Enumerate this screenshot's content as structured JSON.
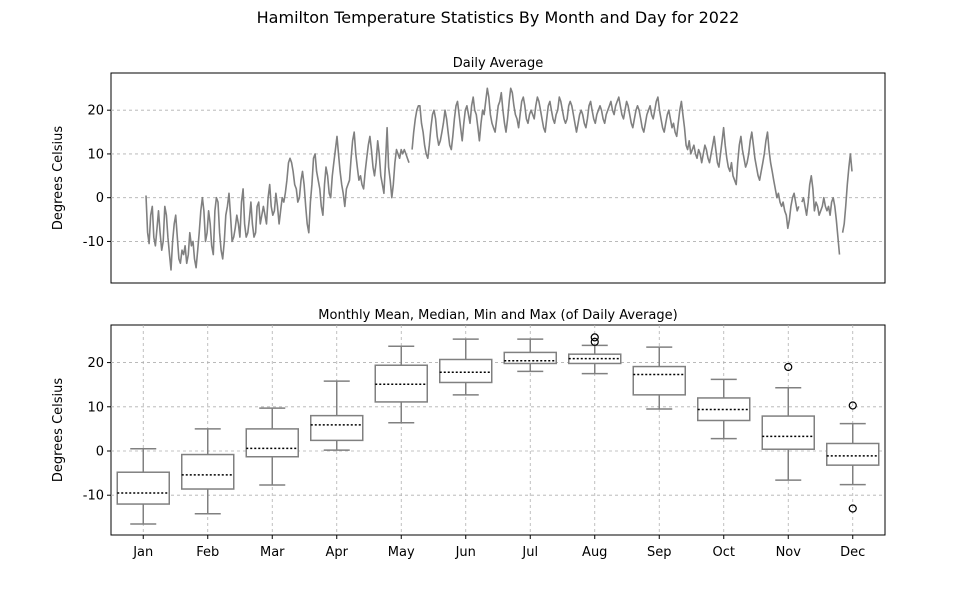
{
  "figure": {
    "title": "Hamilton Temperature Statistics By Month and Day for 2022"
  },
  "chart_data": [
    {
      "type": "line",
      "title": "Daily Average",
      "xlabel": "",
      "ylabel": "Degrees Celsius",
      "x_range": [
        1,
        365
      ],
      "ylim": [
        -19.5,
        28.5
      ],
      "yticks": [
        -10,
        0,
        10,
        20
      ],
      "grid": "y-dashed",
      "color": "#808080",
      "series": [
        {
          "values": [
            0.5,
            -8,
            -10.5,
            -4,
            -2,
            -9,
            -11,
            -7,
            -3,
            -8,
            -12,
            -10,
            -2,
            -4,
            -9,
            -13,
            -16.5,
            -10,
            -6,
            -4,
            -9,
            -14,
            -15,
            -12,
            -13,
            -11,
            -15,
            -13,
            -8,
            -11,
            -10,
            -14,
            -16,
            -12,
            -8,
            -3,
            0,
            -3,
            -10,
            -8,
            -3,
            -6,
            -11,
            -13,
            -3,
            0,
            -1,
            -8,
            -12,
            -14,
            -10,
            -4,
            -2,
            1,
            -4,
            -10,
            -9,
            -7,
            -4,
            -6,
            -9,
            -1,
            2,
            -6,
            -9,
            -8,
            -5,
            -1,
            -6,
            -9,
            -8,
            -2,
            -1,
            -6,
            -4,
            -2,
            -4,
            -6,
            0,
            3,
            -2,
            -4,
            -3,
            1,
            -2,
            -6,
            -3,
            0,
            -1,
            1,
            4,
            8,
            9,
            8,
            6,
            3,
            2,
            -1,
            0,
            4,
            6,
            3,
            -2,
            -6,
            -8,
            -1,
            3,
            9,
            10,
            6,
            4,
            2,
            -2,
            -4,
            3,
            7,
            5,
            1,
            0,
            5,
            8,
            11,
            14,
            10,
            6,
            3,
            1,
            -2,
            2,
            3,
            4,
            9,
            13,
            15,
            10,
            7,
            4,
            5,
            3,
            2,
            6,
            9,
            12,
            14,
            11,
            7,
            5,
            8,
            13,
            10,
            5,
            3,
            1,
            8,
            16,
            7,
            4,
            0,
            3,
            8,
            11,
            10,
            9,
            11,
            10,
            11,
            10,
            9,
            8,
            null,
            11,
            15,
            18,
            20,
            21,
            21,
            17,
            15,
            12,
            10,
            9,
            12,
            16,
            19,
            20,
            18,
            14,
            12,
            13,
            15,
            17,
            20,
            18,
            15,
            12,
            11,
            14,
            18,
            21,
            22,
            19,
            16,
            13,
            17,
            20,
            21,
            19,
            17,
            21,
            23,
            20,
            19,
            16,
            13,
            17,
            20,
            19,
            22,
            25,
            23,
            19,
            17,
            16,
            15,
            18,
            21,
            22,
            24,
            20,
            17,
            15,
            18,
            22,
            25,
            24,
            21,
            19,
            18,
            16,
            19,
            22,
            23,
            21,
            18,
            17,
            19,
            20,
            19,
            18,
            21,
            23,
            22,
            20,
            18,
            16,
            15,
            18,
            21,
            22,
            20,
            18,
            17,
            19,
            20,
            23,
            22,
            20,
            18,
            17,
            18,
            21,
            22,
            21,
            19,
            17,
            15,
            17,
            19,
            20,
            19,
            17,
            16,
            18,
            21,
            22,
            20,
            18,
            17,
            19,
            20,
            21,
            20,
            18,
            17,
            19,
            20,
            21,
            22,
            20,
            19,
            21,
            22,
            23,
            21,
            19,
            18,
            20,
            22,
            21,
            19,
            17,
            16,
            18,
            20,
            21,
            20,
            18,
            16,
            15,
            17,
            19,
            20,
            21,
            19,
            18,
            20,
            22,
            23,
            20,
            18,
            16,
            15,
            17,
            19,
            20,
            18,
            16,
            17,
            15,
            14,
            17,
            20,
            22,
            19,
            16,
            12,
            11,
            13,
            10,
            11,
            12,
            10,
            9,
            11,
            10,
            8,
            10,
            12,
            11,
            9,
            8,
            10,
            12,
            14,
            11,
            8,
            7,
            10,
            13,
            16,
            12,
            9,
            7,
            6,
            8,
            5,
            4,
            3,
            8,
            12,
            14,
            11,
            9,
            7,
            8,
            10,
            13,
            15,
            12,
            9,
            7,
            5,
            4,
            6,
            8,
            10,
            13,
            15,
            11,
            8,
            6,
            4,
            2,
            0,
            1,
            -1,
            -2,
            -1,
            -3,
            -4,
            -7,
            -5,
            -2,
            0,
            1,
            -1,
            -3,
            -2,
            null,
            -1,
            0,
            -2,
            -4,
            -1,
            3,
            5,
            2,
            -3,
            -1,
            -2,
            -4,
            -3,
            -2,
            0,
            -2,
            -3,
            -2,
            -4,
            -1,
            0,
            -2,
            -5,
            -9,
            -13,
            null,
            -8,
            -6,
            -2,
            3,
            7,
            10,
            6
          ]
        }
      ]
    },
    {
      "type": "box",
      "title": "Monthly Mean, Median, Min and Max (of Daily Average)",
      "xlabel": "",
      "ylabel": "Degrees Celsius",
      "ylim": [
        -19,
        28.5
      ],
      "yticks": [
        -10,
        0,
        10,
        20
      ],
      "grid": "both-dashed",
      "color": "#808080",
      "categories": [
        "Jan",
        "Feb",
        "Mar",
        "Apr",
        "May",
        "Jun",
        "Jul",
        "Aug",
        "Sep",
        "Oct",
        "Nov",
        "Dec"
      ],
      "boxes": [
        {
          "min": -16.5,
          "q1": -12.0,
          "median": -9.5,
          "q3": -4.8,
          "max": 0.5,
          "outliers": []
        },
        {
          "min": -14.2,
          "q1": -8.6,
          "median": -5.4,
          "q3": -0.8,
          "max": 5.0,
          "outliers": []
        },
        {
          "min": -7.7,
          "q1": -1.3,
          "median": 0.6,
          "q3": 5.0,
          "max": 9.7,
          "outliers": []
        },
        {
          "min": 0.2,
          "q1": 2.4,
          "median": 5.9,
          "q3": 8.0,
          "max": 15.8,
          "outliers": []
        },
        {
          "min": 6.4,
          "q1": 11.1,
          "median": 15.1,
          "q3": 19.4,
          "max": 23.7,
          "outliers": []
        },
        {
          "min": 12.7,
          "q1": 15.5,
          "median": 17.8,
          "q3": 20.7,
          "max": 25.3,
          "outliers": []
        },
        {
          "min": 18.0,
          "q1": 19.8,
          "median": 20.4,
          "q3": 22.3,
          "max": 25.3,
          "outliers": []
        },
        {
          "min": 17.5,
          "q1": 19.8,
          "median": 20.9,
          "q3": 21.9,
          "max": 23.9,
          "outliers": [
            24.7,
            25.7
          ]
        },
        {
          "min": 9.5,
          "q1": 12.7,
          "median": 17.3,
          "q3": 19.1,
          "max": 23.5,
          "outliers": []
        },
        {
          "min": 2.8,
          "q1": 6.9,
          "median": 9.4,
          "q3": 12.0,
          "max": 16.2,
          "outliers": []
        },
        {
          "min": -6.6,
          "q1": 0.4,
          "median": 3.3,
          "q3": 7.9,
          "max": 14.3,
          "outliers": [
            19.0
          ]
        },
        {
          "min": -7.6,
          "q1": -3.2,
          "median": -1.1,
          "q3": 1.7,
          "max": 6.2,
          "outliers": [
            10.3,
            -13.0
          ]
        }
      ]
    }
  ]
}
